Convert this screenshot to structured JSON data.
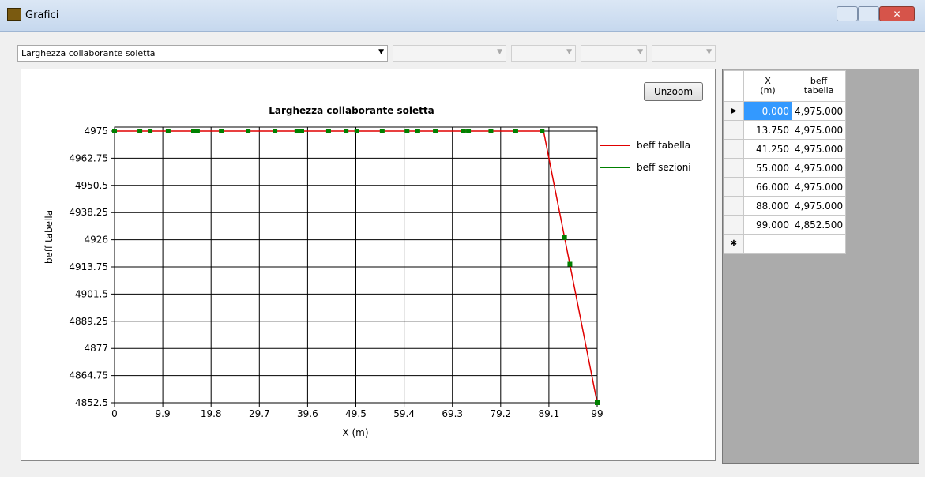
{
  "window": {
    "title": "Grafici"
  },
  "toolbar": {
    "selector": "Larghezza collaborante soletta",
    "button": "Unzoom"
  },
  "chart_data": {
    "type": "line",
    "title": "Larghezza collaborante soletta",
    "x_label": "X (m)",
    "y_label": "beff tabella",
    "xlim": [
      0,
      99
    ],
    "ylim": [
      4852.5,
      4975
    ],
    "xticks": [
      0,
      9.9,
      19.8,
      29.7,
      39.6,
      49.5,
      59.4,
      69.3,
      79.2,
      89.1,
      99
    ],
    "yticks": [
      4852.5,
      4864.75,
      4877,
      4889.25,
      4901.5,
      4913.75,
      4926,
      4938.25,
      4950.5,
      4962.75,
      4975
    ],
    "grid": true,
    "legend": "right",
    "series": [
      {
        "name": "beff tabella",
        "color": "#e00000",
        "style": "line",
        "x": [
          0,
          13.75,
          41.25,
          55,
          66,
          88,
          99
        ],
        "values": [
          4975,
          4975,
          4975,
          4975,
          4975,
          4975,
          4852.5
        ]
      },
      {
        "name": "beff sezioni",
        "color": "#008000",
        "style": "markers",
        "x": [
          0,
          5.2,
          7.3,
          11,
          16.2,
          17,
          21.9,
          27.4,
          32.9,
          37.4,
          38.4,
          43.9,
          47.5,
          49.7,
          54.9,
          60,
          62.2,
          65.8,
          71.6,
          72.6,
          77.2,
          82.3,
          87.7,
          92.3,
          93.4,
          99
        ],
        "values": [
          4975,
          4975,
          4975,
          4975,
          4975,
          4975,
          4975,
          4975,
          4975,
          4975,
          4975,
          4975,
          4975,
          4975,
          4975,
          4975,
          4975,
          4975,
          4975,
          4975,
          4975,
          4975,
          4975,
          4927,
          4915,
          4852.5
        ]
      }
    ]
  },
  "table": {
    "headers": [
      [
        "X",
        "(m)"
      ],
      [
        "beff",
        "tabella"
      ]
    ],
    "rows": [
      [
        "0.000",
        "4,975.000"
      ],
      [
        "13.750",
        "4,975.000"
      ],
      [
        "41.250",
        "4,975.000"
      ],
      [
        "55.000",
        "4,975.000"
      ],
      [
        "66.000",
        "4,975.000"
      ],
      [
        "88.000",
        "4,975.000"
      ],
      [
        "99.000",
        "4,852.500"
      ]
    ]
  }
}
